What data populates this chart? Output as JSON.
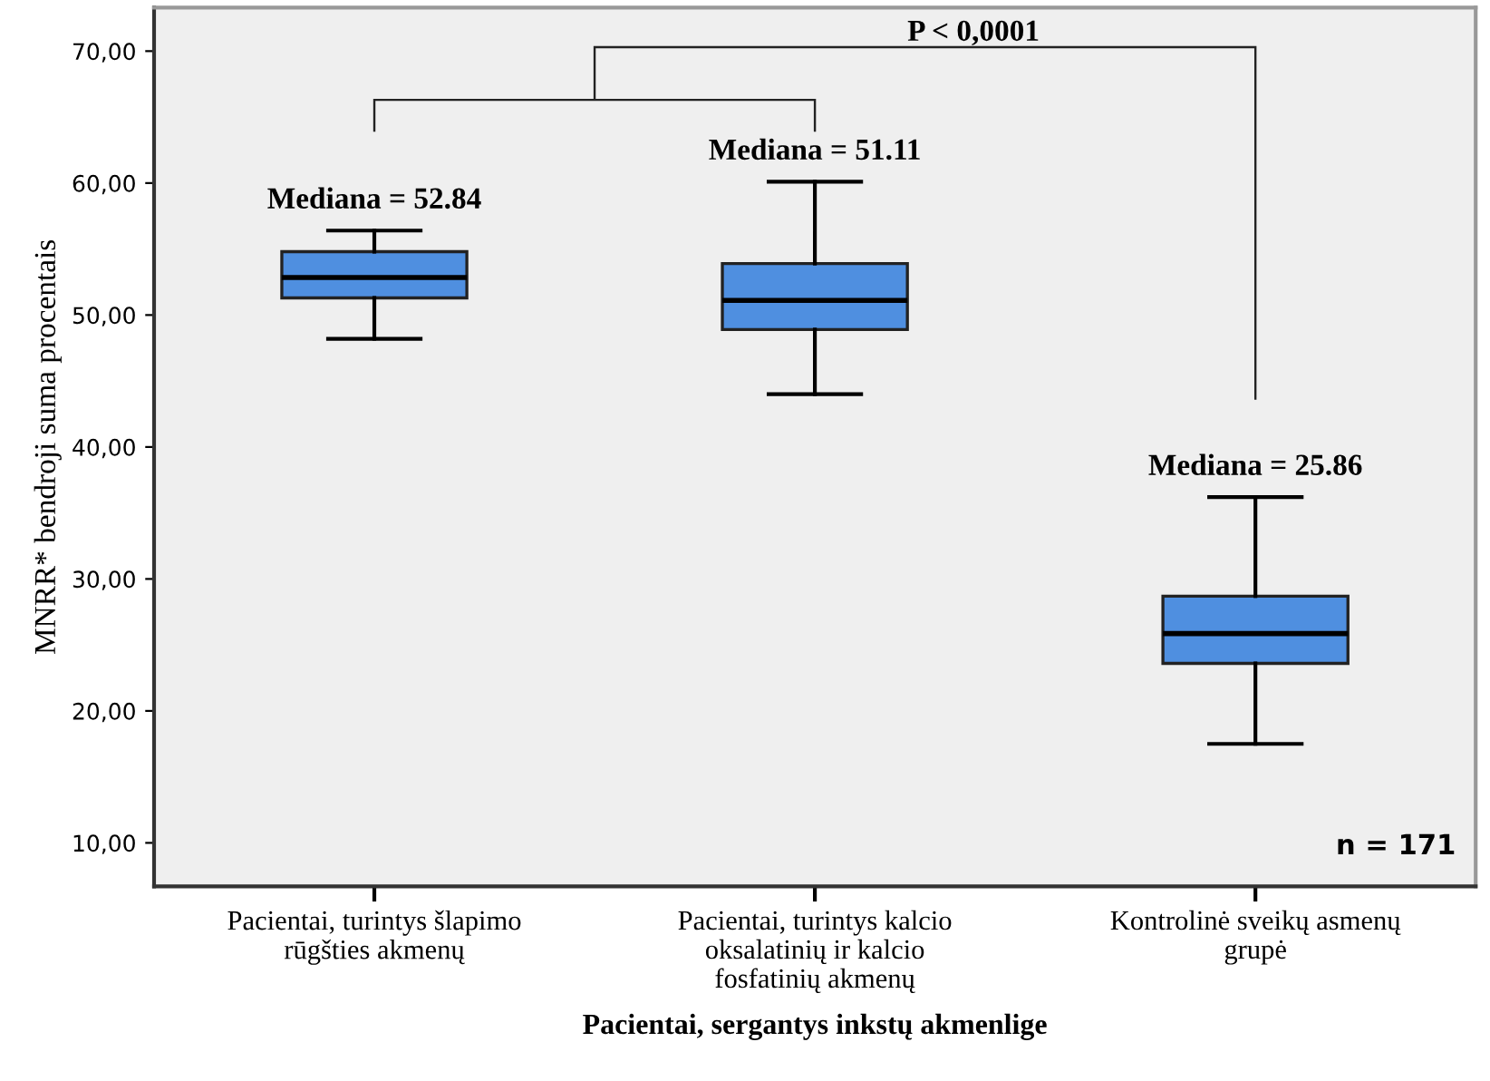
{
  "chart_data": {
    "type": "box",
    "xlabel": "Pacientai, sergantys inkstų akmenlige",
    "ylabel": "MNRR* bendroji suma procentais",
    "categories": [
      "Pacientai, turintys šlapimo\nrūgšties akmenų",
      "Pacientai, turintys kalcio\noksalatinių ir kalcio\nfosfatinių akmenų",
      "Kontrolinė sveikų asmenų\ngrupė"
    ],
    "boxes": [
      {
        "low": 48.2,
        "q1": 51.3,
        "median": 52.84,
        "q3": 54.8,
        "high": 56.4
      },
      {
        "low": 44.0,
        "q1": 48.9,
        "median": 51.11,
        "q3": 53.9,
        "high": 60.1
      },
      {
        "low": 17.5,
        "q1": 23.6,
        "median": 25.86,
        "q3": 28.7,
        "high": 36.2
      }
    ],
    "color": "#4f8fe0",
    "ylim": [
      6.7,
      73.3
    ],
    "yticks": [
      {
        "value": 10,
        "label": "10,00"
      },
      {
        "value": 20,
        "label": "20,00"
      },
      {
        "value": 30,
        "label": "30,00"
      },
      {
        "value": 40,
        "label": "40,00"
      },
      {
        "value": 50,
        "label": "50,00"
      },
      {
        "value": 60,
        "label": "60,00"
      },
      {
        "value": 70,
        "label": "70,00"
      }
    ],
    "grid": false,
    "legend": false,
    "annotations": [
      "Mediana = 52.84",
      "Mediana = 51.11",
      "Mediana = 25.86",
      "P < 0,0001",
      "n = 171"
    ]
  }
}
